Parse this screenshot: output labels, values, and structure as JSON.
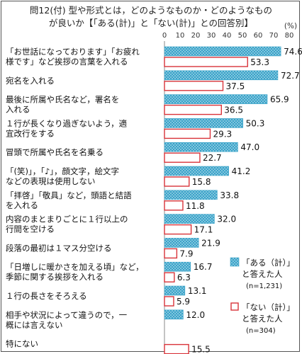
{
  "title": {
    "line1": "問12(付) 型や形式とは，どのようなものか・どのようなもの",
    "line2": "が良いか【「ある(計)」と「ない(計)」との回答別】"
  },
  "unit": "(%)",
  "chart_data": {
    "type": "bar",
    "orientation": "horizontal",
    "xlim": [
      0,
      80
    ],
    "xticks": [
      "0",
      "10",
      "20",
      "30",
      "40",
      "50",
      "60",
      "70",
      "80"
    ],
    "categories": [
      [
        "「お世話になっております」「お疲れ",
        "様です」など挨拶の言葉を入れる"
      ],
      [
        "宛名を入れる"
      ],
      [
        "最後に所属や氏名など，署名を",
        "入れる"
      ],
      [
        "１行が長くなり過ぎないよう，適",
        "宜改行をする"
      ],
      [
        "冒頭で所属や氏名を名乗る"
      ],
      [
        "「(笑)」，「♪」，顔文字，絵文字",
        "などの表現は使用しない"
      ],
      [
        "「拝啓」「敬具」など，頭語と結語",
        "を入れる"
      ],
      [
        "内容のまとまりごとに１行以上の",
        "行間を空ける"
      ],
      [
        "段落の最初は１マス分空ける"
      ],
      [
        "「日増しに暖かさを加える頃」など，",
        "季節に関する挨拶を入れる"
      ],
      [
        "１行の長さをそろえる"
      ],
      [
        "相手や状況によって違うので，一",
        "概には言えない"
      ],
      [
        "特にない"
      ]
    ],
    "series": [
      {
        "name": "「ある（計）」と答えた人",
        "n": "(n=1,231)",
        "color": "#3aa3c9",
        "pattern": "dotted",
        "values": [
          74.6,
          72.7,
          65.9,
          50.3,
          47.0,
          41.2,
          33.8,
          32.0,
          21.9,
          16.7,
          13.1,
          12.0,
          null
        ],
        "labels": [
          "74.6",
          "72.7",
          "65.9",
          "50.3",
          "47.0",
          "41.2",
          "33.8",
          "32.0",
          "21.9",
          "16.7",
          "13.1",
          "12.0",
          ""
        ]
      },
      {
        "name": "「ない（計）」と答えた人",
        "n": "(n=304)",
        "color": "#d9343a",
        "pattern": "outlined",
        "values": [
          53.3,
          37.5,
          36.5,
          29.3,
          22.7,
          15.8,
          11.8,
          17.1,
          7.9,
          6.3,
          5.9,
          null,
          15.5
        ],
        "labels": [
          "53.3",
          "37.5",
          "36.5",
          "29.3",
          "22.7",
          "15.8",
          "11.8",
          "17.1",
          "7.9",
          "6.3",
          "5.9",
          "",
          "15.5"
        ]
      }
    ],
    "legend_position": "bottom-right",
    "grid": false
  }
}
